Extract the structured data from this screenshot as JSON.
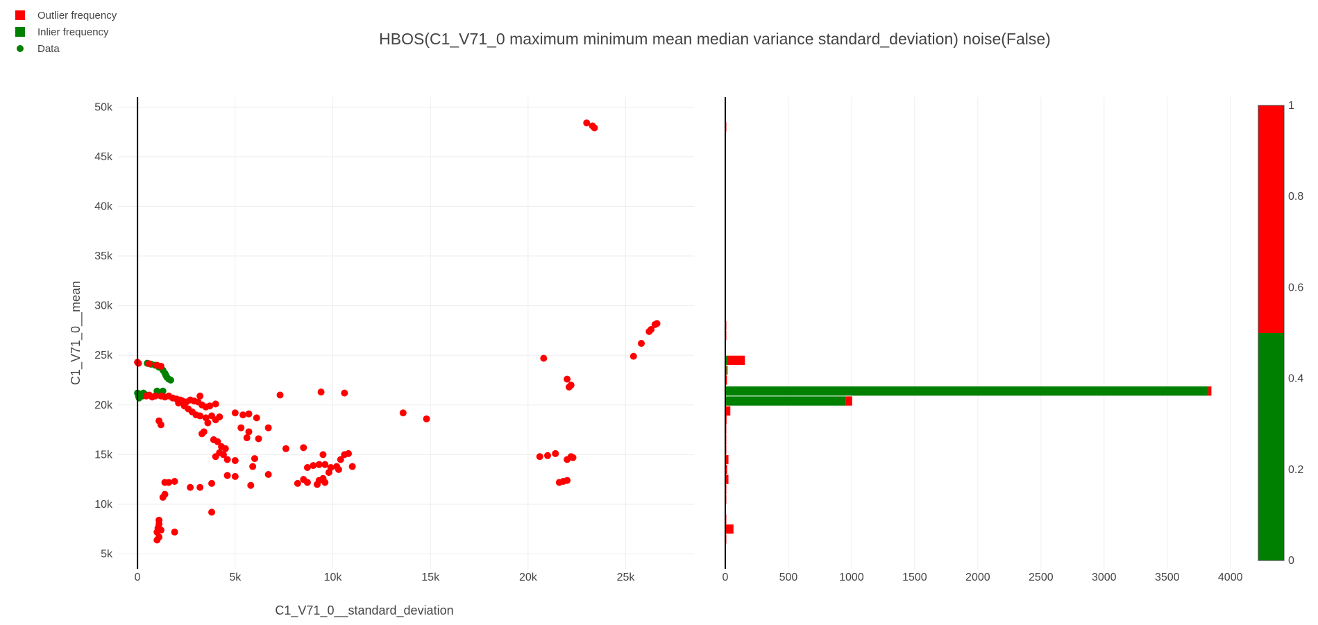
{
  "colors": {
    "outlier": "#ff0000",
    "inlier": "#008000",
    "axis": "#000000",
    "grid": "#eeeeee"
  },
  "chart_data": {
    "title": "HBOS(C1_V71_0 maximum minimum mean median variance standard_deviation) noise(False)",
    "legend": {
      "placement": "top-left",
      "entries": [
        {
          "label": "Outlier frequency",
          "symbol": "square",
          "color": "#ff0000"
        },
        {
          "label": "Inlier frequency",
          "symbol": "square",
          "color": "#008000"
        },
        {
          "label": "Data",
          "symbol": "circle",
          "color": "#008000"
        }
      ]
    },
    "scatter": {
      "type": "scatter",
      "xlabel": "C1_V71_0__standard_deviation",
      "ylabel": "C1_V71_0__mean",
      "xlim": [
        -1000,
        28500
      ],
      "ylim": [
        3500,
        51000
      ],
      "xticks": [
        0,
        5000,
        10000,
        15000,
        20000,
        25000
      ],
      "xtick_labels": [
        "0",
        "5k",
        "10k",
        "15k",
        "20k",
        "25k"
      ],
      "yticks": [
        5000,
        10000,
        15000,
        20000,
        25000,
        30000,
        35000,
        40000,
        45000,
        50000
      ],
      "ytick_labels": [
        "5k",
        "10k",
        "15k",
        "20k",
        "25k",
        "30k",
        "35k",
        "40k",
        "45k",
        "50k"
      ],
      "inliers": [
        [
          0,
          21200
        ],
        [
          50,
          20900
        ],
        [
          100,
          21000
        ],
        [
          80,
          20700
        ],
        [
          200,
          21100
        ],
        [
          300,
          21200
        ],
        [
          150,
          20850
        ],
        [
          1000,
          21400
        ],
        [
          1300,
          21400
        ],
        [
          1100,
          21000
        ],
        [
          400,
          21050
        ],
        [
          250,
          20900
        ],
        [
          500,
          24200
        ],
        [
          700,
          24100
        ],
        [
          900,
          24000
        ],
        [
          1100,
          23800
        ],
        [
          1300,
          23500
        ],
        [
          1400,
          23200
        ],
        [
          1450,
          23000
        ],
        [
          1500,
          22800
        ],
        [
          1600,
          22600
        ],
        [
          1700,
          22500
        ]
      ],
      "outliers": [
        [
          0,
          24300
        ],
        [
          50,
          24200
        ],
        [
          600,
          24150
        ],
        [
          1000,
          24000
        ],
        [
          1200,
          23900
        ],
        [
          450,
          20900
        ],
        [
          600,
          21000
        ],
        [
          750,
          20800
        ],
        [
          900,
          20900
        ],
        [
          1200,
          20900
        ],
        [
          1400,
          20800
        ],
        [
          1600,
          20900
        ],
        [
          1800,
          20700
        ],
        [
          2000,
          20600
        ],
        [
          2200,
          20500
        ],
        [
          2100,
          20200
        ],
        [
          2300,
          20400
        ],
        [
          2500,
          20300
        ],
        [
          2700,
          20500
        ],
        [
          2900,
          20400
        ],
        [
          3200,
          20900
        ],
        [
          3100,
          20300
        ],
        [
          3300,
          20000
        ],
        [
          3500,
          19800
        ],
        [
          3700,
          19900
        ],
        [
          4000,
          20100
        ],
        [
          2400,
          19900
        ],
        [
          2600,
          19600
        ],
        [
          2800,
          19300
        ],
        [
          3000,
          19000
        ],
        [
          3200,
          18900
        ],
        [
          3500,
          18700
        ],
        [
          3800,
          18900
        ],
        [
          4000,
          18500
        ],
        [
          4200,
          18800
        ],
        [
          3600,
          18200
        ],
        [
          3400,
          17300
        ],
        [
          3300,
          17100
        ],
        [
          3900,
          16500
        ],
        [
          4100,
          16300
        ],
        [
          4300,
          15800
        ],
        [
          4500,
          15600
        ],
        [
          4200,
          15200
        ],
        [
          4000,
          14800
        ],
        [
          4600,
          14500
        ],
        [
          4400,
          15000
        ],
        [
          5000,
          19200
        ],
        [
          5400,
          19000
        ],
        [
          5700,
          19100
        ],
        [
          6100,
          18700
        ],
        [
          5300,
          17700
        ],
        [
          5700,
          17300
        ],
        [
          6200,
          16600
        ],
        [
          5600,
          16700
        ],
        [
          6700,
          17700
        ],
        [
          7300,
          21000
        ],
        [
          9400,
          21300
        ],
        [
          10600,
          21200
        ],
        [
          13600,
          19200
        ],
        [
          14800,
          18600
        ],
        [
          5000,
          14400
        ],
        [
          5900,
          13800
        ],
        [
          6000,
          14600
        ],
        [
          6700,
          13000
        ],
        [
          7600,
          15600
        ],
        [
          8500,
          15700
        ],
        [
          9500,
          15000
        ],
        [
          8700,
          13700
        ],
        [
          9000,
          13900
        ],
        [
          9300,
          14000
        ],
        [
          9600,
          14000
        ],
        [
          9900,
          13700
        ],
        [
          10200,
          13800
        ],
        [
          10400,
          14500
        ],
        [
          10600,
          15000
        ],
        [
          10800,
          15100
        ],
        [
          11000,
          13800
        ],
        [
          10300,
          13500
        ],
        [
          9800,
          13200
        ],
        [
          9500,
          12600
        ],
        [
          9300,
          12400
        ],
        [
          9600,
          12200
        ],
        [
          9200,
          12000
        ],
        [
          8700,
          12200
        ],
        [
          8500,
          12500
        ],
        [
          8200,
          12100
        ],
        [
          4600,
          12900
        ],
        [
          5000,
          12800
        ],
        [
          5800,
          11900
        ],
        [
          3800,
          12100
        ],
        [
          3200,
          11700
        ],
        [
          2700,
          11700
        ],
        [
          1900,
          12300
        ],
        [
          1400,
          12200
        ],
        [
          1600,
          12200
        ],
        [
          1300,
          10700
        ],
        [
          1400,
          11000
        ],
        [
          3800,
          9200
        ],
        [
          1100,
          8400
        ],
        [
          1100,
          8000
        ],
        [
          1050,
          7600
        ],
        [
          1200,
          7400
        ],
        [
          1000,
          7200
        ],
        [
          1100,
          6700
        ],
        [
          1000,
          6400
        ],
        [
          1900,
          7200
        ],
        [
          1200,
          18000
        ],
        [
          1100,
          18400
        ],
        [
          20800,
          24700
        ],
        [
          22000,
          22600
        ],
        [
          22200,
          22000
        ],
        [
          22100,
          21800
        ],
        [
          25400,
          24900
        ],
        [
          25800,
          26200
        ],
        [
          26200,
          27400
        ],
        [
          26300,
          27600
        ],
        [
          26500,
          28100
        ],
        [
          26600,
          28200
        ],
        [
          23000,
          48400
        ],
        [
          23300,
          48100
        ],
        [
          23400,
          47900
        ],
        [
          20600,
          14800
        ],
        [
          21000,
          14900
        ],
        [
          21400,
          15100
        ],
        [
          22000,
          14500
        ],
        [
          22200,
          14800
        ],
        [
          22300,
          14700
        ],
        [
          21600,
          12200
        ],
        [
          21800,
          12300
        ],
        [
          22000,
          12400
        ]
      ]
    },
    "histogram": {
      "type": "bar",
      "orientation": "horizontal",
      "xlim": [
        0,
        4150
      ],
      "xticks": [
        0,
        500,
        1000,
        1500,
        2000,
        2500,
        3000,
        3500,
        4000
      ],
      "xtick_labels": [
        "0",
        "500",
        "1000",
        "1500",
        "2000",
        "2500",
        "3000",
        "3500",
        "4000"
      ],
      "bin_width": 1000,
      "bins": [
        {
          "y": 48000,
          "inlier": 0,
          "outlier": 3
        },
        {
          "y": 28000,
          "inlier": 0,
          "outlier": 2
        },
        {
          "y": 27000,
          "inlier": 0,
          "outlier": 3
        },
        {
          "y": 24500,
          "inlier": 15,
          "outlier": 140
        },
        {
          "y": 23500,
          "inlier": 10,
          "outlier": 2
        },
        {
          "y": 22500,
          "inlier": 5,
          "outlier": 3
        },
        {
          "y": 21400,
          "inlier": 3825,
          "outlier": 25
        },
        {
          "y": 20400,
          "inlier": 955,
          "outlier": 50
        },
        {
          "y": 19400,
          "inlier": 0,
          "outlier": 40
        },
        {
          "y": 18500,
          "inlier": 0,
          "outlier": 10
        },
        {
          "y": 17500,
          "inlier": 0,
          "outlier": 5
        },
        {
          "y": 16500,
          "inlier": 0,
          "outlier": 5
        },
        {
          "y": 15500,
          "inlier": 0,
          "outlier": 5
        },
        {
          "y": 14500,
          "inlier": 0,
          "outlier": 25
        },
        {
          "y": 13500,
          "inlier": 0,
          "outlier": 15
        },
        {
          "y": 12500,
          "inlier": 0,
          "outlier": 25
        },
        {
          "y": 11500,
          "inlier": 0,
          "outlier": 5
        },
        {
          "y": 10500,
          "inlier": 0,
          "outlier": 5
        },
        {
          "y": 8500,
          "inlier": 0,
          "outlier": 5
        },
        {
          "y": 7500,
          "inlier": 0,
          "outlier": 65
        },
        {
          "y": 6500,
          "inlier": 0,
          "outlier": 5
        }
      ]
    },
    "colorbar": {
      "ticks": [
        0,
        0.2,
        0.4,
        0.6,
        0.8,
        1
      ],
      "tick_labels": [
        "0",
        "0.2",
        "0.4",
        "0.6",
        "0.8",
        "1"
      ],
      "split": 0.5,
      "low_color": "#008000",
      "high_color": "#ff0000"
    }
  }
}
